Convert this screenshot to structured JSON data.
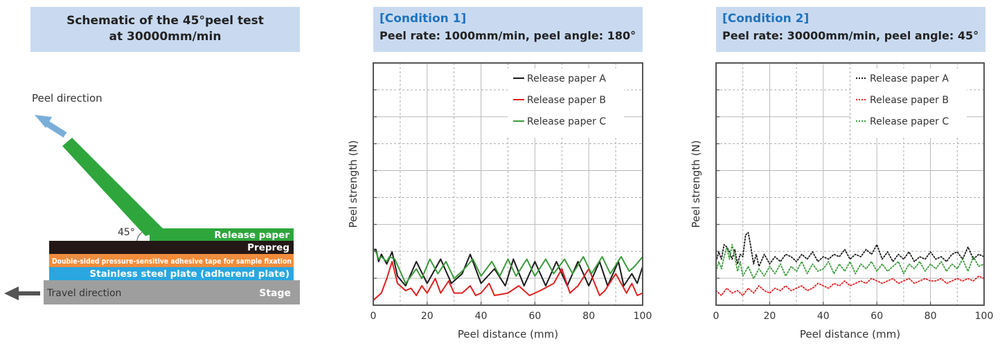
{
  "schematic": {
    "title_line1": "Schematic of the 45°peel test",
    "title_line2": "at 30000mm/min",
    "peel_direction": "Peel direction",
    "angle": "45°",
    "layers": {
      "release_paper": "Release paper",
      "prepreg": "Prepreg",
      "tape": "Double-sided pressure-sensitive adhesive tape for sample fixation",
      "steel": "Stainless steel plate (adherend plate)",
      "stage": "Stage"
    },
    "travel_direction": "Travel direction",
    "colors": {
      "release_paper": "#2ea63c",
      "prepreg": "#231816",
      "tape": "#f08c3c",
      "steel": "#2aa6e0",
      "stage": "#9e9e9e",
      "peel_arrow": "#7aaed8",
      "travel_arrow": "#555555"
    }
  },
  "condition1": {
    "tag": "[Condition 1]",
    "subtitle": "Peel rate: 1000mm/min, peel angle: 180°"
  },
  "condition2": {
    "tag": "[Condition 2]",
    "subtitle": "Peel rate: 30000mm/min, peel angle: 45°"
  },
  "chart_data": [
    {
      "type": "line",
      "xlabel": "Peel distance (mm)",
      "ylabel": "Peel strength (N)",
      "xlim": [
        0,
        100
      ],
      "ylim": [
        0,
        10
      ],
      "xticks": [
        0,
        20,
        40,
        60,
        80,
        100
      ],
      "y_tick_labels": "none",
      "grid": true,
      "legend_position": "top-right",
      "line_style": "solid",
      "series": [
        {
          "name": "Release paper A",
          "color": "#1a1a1a",
          "x": [
            0,
            1,
            2,
            3,
            5,
            7,
            9,
            12,
            16,
            20,
            25,
            29,
            33,
            36,
            40,
            45,
            49,
            52,
            56,
            60,
            64,
            68,
            72,
            76,
            80,
            84,
            87,
            91,
            93,
            96,
            98,
            100
          ],
          "y": [
            2.3,
            2.3,
            1.8,
            2.1,
            1.7,
            2.2,
            1.2,
            0.8,
            1.8,
            0.9,
            1.9,
            0.9,
            1.3,
            2.1,
            0.9,
            1.5,
            0.8,
            1.9,
            0.8,
            1.8,
            0.8,
            1.8,
            0.8,
            1.8,
            0.8,
            1.8,
            0.8,
            1.8,
            0.8,
            1.3,
            0.9,
            1.6
          ]
        },
        {
          "name": "Release paper B",
          "color": "#e02020",
          "x": [
            0,
            3,
            5,
            7,
            9,
            12,
            14,
            16,
            18,
            20,
            23,
            25,
            28,
            30,
            33,
            36,
            38,
            40,
            43,
            45,
            50,
            54,
            58,
            62,
            67,
            70,
            73,
            76,
            80,
            84,
            86,
            90,
            94,
            96,
            98,
            100
          ],
          "y": [
            0.2,
            0.5,
            1.1,
            1.8,
            0.9,
            0.6,
            0.7,
            0.4,
            0.8,
            0.5,
            1.1,
            0.5,
            1.0,
            0.5,
            0.5,
            0.8,
            0.4,
            0.5,
            0.9,
            0.4,
            0.5,
            0.8,
            0.4,
            0.6,
            0.9,
            1.5,
            0.5,
            0.8,
            1.5,
            0.4,
            0.6,
            1.3,
            0.5,
            0.9,
            0.4,
            0.5
          ]
        },
        {
          "name": "Release paper C",
          "color": "#3a9a3a",
          "x": [
            0,
            1,
            2,
            3,
            5,
            6,
            8,
            10,
            12,
            16,
            18,
            21,
            24,
            27,
            30,
            33,
            37,
            40,
            44,
            47,
            50,
            53,
            57,
            60,
            64,
            67,
            71,
            74,
            78,
            81,
            85,
            88,
            92,
            95,
            97,
            100
          ],
          "y": [
            2.3,
            2.2,
            1.9,
            2.0,
            1.8,
            2.0,
            1.9,
            1.4,
            0.9,
            1.5,
            1.1,
            1.9,
            1.3,
            1.8,
            1.1,
            1.4,
            1.9,
            1.2,
            1.8,
            1.2,
            1.9,
            1.2,
            1.9,
            1.2,
            1.9,
            1.3,
            1.9,
            1.3,
            2.0,
            1.3,
            2.0,
            1.3,
            2.0,
            1.4,
            1.6,
            2.0
          ]
        }
      ]
    },
    {
      "type": "line",
      "xlabel": "Peel distance (mm)",
      "ylabel": "Peel strength (N)",
      "xlim": [
        0,
        100
      ],
      "ylim": [
        0,
        10
      ],
      "xticks": [
        0,
        20,
        40,
        60,
        80,
        100
      ],
      "y_tick_labels": "none",
      "grid": true,
      "legend_position": "top-right",
      "line_style": "dotted",
      "series": [
        {
          "name": "Release paper A",
          "color": "#1a1a1a",
          "x": [
            0,
            1,
            2,
            3,
            4,
            5,
            6,
            7,
            8,
            9,
            10,
            11,
            12,
            13,
            14,
            15,
            16,
            18,
            20,
            22,
            24,
            26,
            28,
            30,
            32,
            34,
            36,
            38,
            40,
            42,
            44,
            46,
            48,
            50,
            52,
            54,
            56,
            58,
            60,
            62,
            64,
            66,
            68,
            70,
            72,
            74,
            76,
            78,
            80,
            82,
            84,
            86,
            88,
            90,
            92,
            94,
            96,
            98,
            100
          ],
          "y": [
            1.8,
            2.2,
            1.9,
            2.5,
            2.4,
            2.2,
            1.9,
            2.3,
            1.7,
            2.1,
            2.0,
            2.9,
            3.0,
            2.4,
            1.7,
            2.1,
            1.6,
            2.1,
            1.7,
            2.0,
            1.8,
            2.1,
            2.0,
            1.8,
            2.1,
            1.9,
            2.2,
            1.8,
            2.0,
            1.9,
            2.1,
            2.0,
            2.3,
            1.9,
            2.1,
            2.0,
            2.3,
            2.1,
            2.5,
            1.9,
            2.2,
            1.8,
            2.1,
            1.9,
            2.2,
            1.8,
            2.0,
            1.9,
            2.2,
            1.9,
            2.0,
            1.8,
            2.1,
            2.2,
            1.9,
            2.4,
            1.9,
            2.1,
            2.0
          ]
        },
        {
          "name": "Release paper B",
          "color": "#e02020",
          "x": [
            0,
            2,
            4,
            6,
            8,
            10,
            12,
            14,
            16,
            18,
            20,
            22,
            24,
            26,
            28,
            30,
            32,
            34,
            36,
            38,
            40,
            42,
            44,
            46,
            48,
            50,
            52,
            54,
            56,
            58,
            60,
            62,
            64,
            66,
            68,
            70,
            72,
            74,
            76,
            78,
            80,
            82,
            84,
            86,
            88,
            90,
            92,
            94,
            96,
            98,
            100
          ],
          "y": [
            0.6,
            0.4,
            0.7,
            0.5,
            0.6,
            0.4,
            0.7,
            0.5,
            0.8,
            0.6,
            0.5,
            0.7,
            0.6,
            0.8,
            0.6,
            0.7,
            0.8,
            0.6,
            0.7,
            0.9,
            0.8,
            0.7,
            0.9,
            0.8,
            1.0,
            0.8,
            0.9,
            1.0,
            0.9,
            1.1,
            1.0,
            0.9,
            1.0,
            1.1,
            0.9,
            1.0,
            1.1,
            0.9,
            1.0,
            1.1,
            1.0,
            1.0,
            1.1,
            0.9,
            1.0,
            1.1,
            1.0,
            1.1,
            1.0,
            1.2,
            1.1
          ]
        },
        {
          "name": "Release paper C",
          "color": "#3a9a3a",
          "x": [
            0,
            1,
            2,
            3,
            4,
            5,
            6,
            7,
            8,
            9,
            10,
            12,
            14,
            16,
            18,
            20,
            22,
            24,
            26,
            28,
            30,
            32,
            34,
            36,
            38,
            40,
            42,
            44,
            46,
            48,
            50,
            52,
            54,
            56,
            58,
            60,
            62,
            64,
            66,
            68,
            70,
            72,
            74,
            76,
            78,
            80,
            82,
            84,
            86,
            88,
            90,
            92,
            94,
            96,
            98,
            100
          ],
          "y": [
            1.4,
            1.8,
            1.5,
            2.0,
            2.4,
            1.9,
            2.5,
            2.0,
            1.4,
            1.8,
            1.2,
            1.6,
            1.1,
            1.5,
            1.2,
            1.6,
            1.3,
            1.7,
            1.2,
            1.6,
            1.4,
            1.8,
            1.3,
            1.7,
            1.4,
            1.5,
            1.8,
            1.3,
            1.7,
            1.4,
            1.8,
            1.3,
            1.7,
            1.5,
            1.8,
            1.4,
            1.7,
            1.4,
            1.6,
            1.8,
            1.3,
            1.7,
            1.5,
            1.8,
            1.4,
            1.7,
            1.5,
            1.8,
            1.4,
            1.7,
            1.5,
            1.9,
            1.4,
            2.0,
            1.6,
            1.7
          ]
        }
      ]
    }
  ]
}
